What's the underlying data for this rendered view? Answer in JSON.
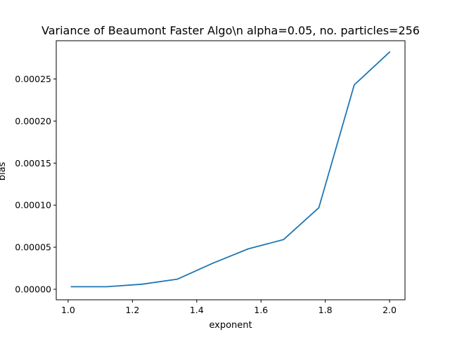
{
  "chart_data": {
    "type": "line",
    "title": "Variance of Beaumont Faster Algo\\n alpha=0.05, no. particles=256",
    "xlabel": "exponent",
    "ylabel": "bias",
    "xlim": [
      0.963,
      2.048
    ],
    "ylim": [
      -1.25e-05,
      0.0002955
    ],
    "x_ticks": [
      1.0,
      1.2,
      1.4,
      1.6,
      1.8,
      2.0
    ],
    "x_tick_labels": [
      "1.0",
      "1.2",
      "1.4",
      "1.6",
      "1.8",
      "2.0"
    ],
    "y_ticks": [
      0,
      5e-05,
      0.0001,
      0.00015,
      0.0002,
      0.00025
    ],
    "y_tick_labels": [
      "0.00000",
      "0.00005",
      "0.00010",
      "0.00015",
      "0.00020",
      "0.00025"
    ],
    "grid": false,
    "series": [
      {
        "color": "#1f77b4",
        "x": [
          1.01,
          1.12,
          1.23,
          1.34,
          1.45,
          1.56,
          1.67,
          1.78,
          1.89,
          2.0
        ],
        "y": [
          3e-06,
          3e-06,
          6e-06,
          1.2e-05,
          3.1e-05,
          4.8e-05,
          5.9e-05,
          9.7e-05,
          0.000243,
          0.000282
        ]
      }
    ]
  }
}
